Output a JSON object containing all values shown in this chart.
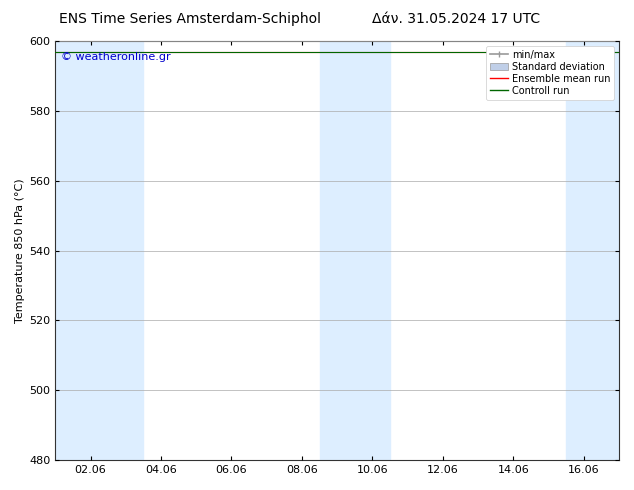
{
  "title_left": "ENS Time Series Amsterdam-Schiphol",
  "title_right": "Δάν. 31.05.2024 17 UTC",
  "ylabel": "Temperature 850 hPa (°C)",
  "watermark": "© weatheronline.gr",
  "watermark_color": "#0000cc",
  "ylim": [
    480,
    600
  ],
  "yticks": [
    480,
    500,
    520,
    540,
    560,
    580,
    600
  ],
  "xtick_labels": [
    "02.06",
    "04.06",
    "06.06",
    "08.06",
    "10.06",
    "12.06",
    "14.06",
    "16.06"
  ],
  "xtick_positions": [
    1,
    3,
    5,
    7,
    9,
    11,
    13,
    15
  ],
  "x_min": 0,
  "x_max": 16,
  "background_color": "#ffffff",
  "shaded_cols": [
    {
      "x_start": 0.0,
      "x_end": 2.5
    },
    {
      "x_start": 7.5,
      "x_end": 9.5
    },
    {
      "x_start": 14.5,
      "x_end": 16.0
    }
  ],
  "shaded_col_color": "#ddeeff",
  "grid_color": "#aaaaaa",
  "spine_color": "#333333",
  "line_ensemble_color": "#ff0000",
  "line_control_color": "#006600",
  "ensemble_mean_y": 597,
  "control_y": 597,
  "legend_labels": [
    "min/max",
    "Standard deviation",
    "Ensemble mean run",
    "Controll run"
  ],
  "minmax_color": "#999999",
  "std_color": "#c0cfe8",
  "title_fontsize": 10,
  "axis_label_fontsize": 8,
  "tick_fontsize": 8,
  "watermark_fontsize": 8,
  "legend_fontsize": 7
}
